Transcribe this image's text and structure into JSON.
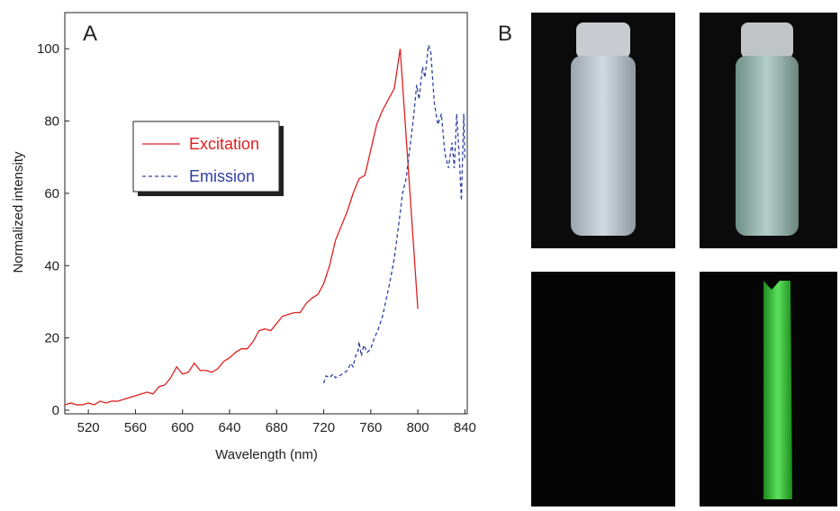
{
  "chart_data": {
    "type": "line",
    "panel_label": "A",
    "x_label": "Wavelength (nm)",
    "y_label": "Normalized intensity",
    "xlim": [
      500,
      842
    ],
    "ylim": [
      -1,
      110
    ],
    "xticks": [
      520,
      560,
      600,
      640,
      680,
      720,
      760,
      800,
      840
    ],
    "yticks": [
      0,
      20,
      40,
      60,
      80,
      100
    ],
    "series": [
      {
        "name": "Excitation",
        "color": "#e02020",
        "dash": "solid",
        "x": [
          500,
          505,
          510,
          515,
          520,
          525,
          530,
          535,
          540,
          545,
          550,
          555,
          560,
          565,
          570,
          575,
          580,
          585,
          590,
          595,
          600,
          605,
          610,
          615,
          620,
          625,
          630,
          635,
          640,
          645,
          650,
          655,
          660,
          665,
          670,
          675,
          680,
          685,
          690,
          695,
          700,
          705,
          710,
          715,
          720,
          725,
          730,
          735,
          740,
          745,
          750,
          755,
          760,
          765,
          770,
          775,
          780,
          785,
          800
        ],
        "values": [
          1.5,
          2,
          1.5,
          1.5,
          2,
          1.5,
          2.5,
          2,
          2.5,
          2.5,
          3,
          3.5,
          4,
          4.5,
          5,
          4.5,
          6.5,
          7,
          9,
          12,
          10,
          10.5,
          13,
          11,
          11,
          10.5,
          11.5,
          13.5,
          14.5,
          16,
          17,
          17,
          19,
          22,
          22.5,
          22,
          24,
          26,
          26.5,
          27,
          27,
          29.5,
          31,
          32,
          35,
          40,
          47,
          51,
          55,
          60,
          64,
          65,
          72,
          79,
          83,
          86,
          89,
          100,
          28
        ]
      },
      {
        "name": "Emission",
        "color": "#3040a0",
        "dash": "dashed",
        "x": [
          720,
          722,
          725,
          728,
          730,
          733,
          736,
          740,
          743,
          745,
          747,
          749,
          750,
          752,
          754,
          757,
          760,
          763,
          766,
          770,
          772,
          776,
          780,
          784,
          787,
          790,
          793,
          796,
          799,
          801,
          804,
          806,
          809,
          811,
          814,
          817,
          820,
          823,
          826,
          829,
          831,
          833,
          835,
          837,
          839,
          840
        ],
        "values": [
          7.5,
          9.5,
          9,
          10,
          9,
          9.5,
          10,
          11,
          13,
          12,
          15,
          16,
          19,
          15,
          18,
          16,
          17,
          20,
          22,
          26,
          29,
          35,
          42,
          52,
          60,
          64,
          72,
          80,
          90,
          86,
          95,
          92,
          101,
          99,
          85,
          79,
          82,
          71,
          67,
          74,
          67,
          82,
          71,
          58,
          82,
          69
        ]
      }
    ]
  },
  "photo_panel": {
    "label": "B"
  }
}
